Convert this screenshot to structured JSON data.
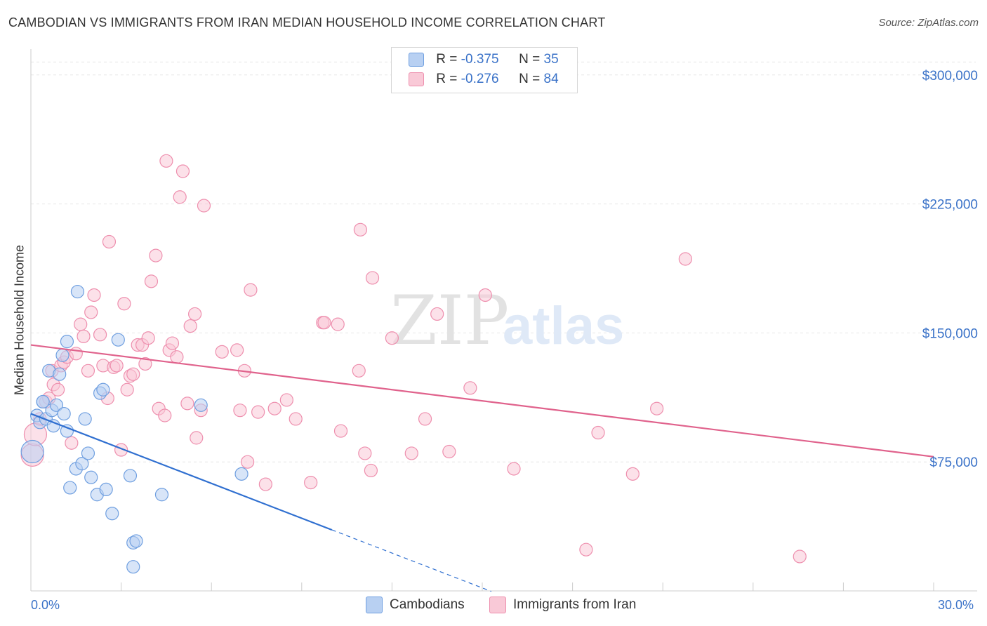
{
  "title": "CAMBODIAN VS IMMIGRANTS FROM IRAN MEDIAN HOUSEHOLD INCOME CORRELATION CHART",
  "source": "Source: ZipAtlas.com",
  "watermark": {
    "zip": "ZIP",
    "atlas": "atlas"
  },
  "legend": {
    "r_label": "R =",
    "n_label": "N =",
    "rows": [
      {
        "r": "-0.375",
        "n": "35",
        "color": "#b8d0f2",
        "border": "#6f9fe0"
      },
      {
        "r": "-0.276",
        "n": "84",
        "color": "#f9c9d7",
        "border": "#ee8fae"
      }
    ]
  },
  "chart_data": {
    "type": "scatter",
    "title": "CAMBODIAN VS IMMIGRANTS FROM IRAN MEDIAN HOUSEHOLD INCOME CORRELATION CHART",
    "xlabel": "",
    "ylabel": "Median Household Income",
    "xlim": [
      0,
      30
    ],
    "ylim": [
      0,
      315000
    ],
    "x_tick_labels": [
      "0.0%",
      "30.0%"
    ],
    "y_ticks": [
      75000,
      150000,
      225000,
      300000
    ],
    "y_tick_labels": [
      "$75,000",
      "$150,000",
      "$225,000",
      "$300,000"
    ],
    "grid": true,
    "legend_position": "bottom",
    "series": [
      {
        "name": "Cambodians",
        "color": "#6f9fe0",
        "fill": "#b8d0f2",
        "line_color": "#2f6fd0",
        "trend": {
          "x0": 0,
          "y0": 103000,
          "x1": 10,
          "y1": 35500,
          "dash_to_x": 15.3
        },
        "points": [
          [
            0.05,
            81000
          ],
          [
            0.2,
            102000
          ],
          [
            0.3,
            98000
          ],
          [
            0.4,
            110000
          ],
          [
            0.5,
            100000
          ],
          [
            0.6,
            128000
          ],
          [
            0.7,
            105000
          ],
          [
            0.75,
            96000
          ],
          [
            0.85,
            108000
          ],
          [
            0.95,
            126000
          ],
          [
            1.05,
            137000
          ],
          [
            1.1,
            103000
          ],
          [
            1.2,
            93000
          ],
          [
            1.3,
            60000
          ],
          [
            1.5,
            71000
          ],
          [
            1.7,
            74000
          ],
          [
            1.9,
            80000
          ],
          [
            2.0,
            66000
          ],
          [
            2.2,
            56000
          ],
          [
            2.3,
            115000
          ],
          [
            2.4,
            117000
          ],
          [
            2.5,
            59000
          ],
          [
            2.7,
            45000
          ],
          [
            2.9,
            146000
          ],
          [
            3.3,
            67000
          ],
          [
            3.4,
            28000
          ],
          [
            3.5,
            29000
          ],
          [
            1.2,
            145000
          ],
          [
            1.55,
            174000
          ],
          [
            3.4,
            14000
          ],
          [
            4.35,
            56000
          ],
          [
            5.65,
            108000
          ],
          [
            7.0,
            68000
          ],
          [
            1.8,
            100000
          ],
          [
            0.4,
            110000
          ]
        ]
      },
      {
        "name": "Immigrants from Iran",
        "color": "#ee8fae",
        "fill": "#f9c9d7",
        "line_color": "#e0628c",
        "trend": {
          "x0": 0,
          "y0": 143000,
          "x1": 30,
          "y1": 78000
        },
        "points": [
          [
            0.05,
            79000
          ],
          [
            0.15,
            91000
          ],
          [
            0.3,
            100000
          ],
          [
            0.5,
            110000
          ],
          [
            0.6,
            112000
          ],
          [
            0.7,
            128000
          ],
          [
            0.75,
            120000
          ],
          [
            0.9,
            117000
          ],
          [
            1.0,
            131000
          ],
          [
            1.1,
            133000
          ],
          [
            1.2,
            136000
          ],
          [
            1.35,
            86000
          ],
          [
            1.5,
            138000
          ],
          [
            1.65,
            155000
          ],
          [
            1.75,
            148000
          ],
          [
            1.9,
            128000
          ],
          [
            2.0,
            162000
          ],
          [
            2.1,
            172000
          ],
          [
            2.3,
            149000
          ],
          [
            2.4,
            131000
          ],
          [
            2.55,
            112000
          ],
          [
            2.6,
            203000
          ],
          [
            2.75,
            130000
          ],
          [
            2.85,
            131000
          ],
          [
            3.0,
            82000
          ],
          [
            3.1,
            167000
          ],
          [
            3.2,
            117000
          ],
          [
            3.3,
            125000
          ],
          [
            3.4,
            126000
          ],
          [
            3.55,
            143000
          ],
          [
            3.7,
            143000
          ],
          [
            3.8,
            132000
          ],
          [
            3.9,
            147000
          ],
          [
            4.0,
            180000
          ],
          [
            4.15,
            195000
          ],
          [
            4.25,
            106000
          ],
          [
            4.45,
            102000
          ],
          [
            4.5,
            250000
          ],
          [
            4.6,
            140000
          ],
          [
            4.7,
            144000
          ],
          [
            4.85,
            136000
          ],
          [
            4.95,
            229000
          ],
          [
            5.05,
            244000
          ],
          [
            5.2,
            109000
          ],
          [
            5.3,
            154000
          ],
          [
            5.45,
            161000
          ],
          [
            5.5,
            89000
          ],
          [
            5.65,
            105000
          ],
          [
            5.75,
            224000
          ],
          [
            6.35,
            139000
          ],
          [
            6.85,
            140000
          ],
          [
            6.95,
            105000
          ],
          [
            7.1,
            128000
          ],
          [
            7.2,
            75000
          ],
          [
            7.3,
            175000
          ],
          [
            7.55,
            104000
          ],
          [
            7.8,
            62000
          ],
          [
            8.1,
            106000
          ],
          [
            8.5,
            111000
          ],
          [
            9.3,
            63000
          ],
          [
            9.7,
            156000
          ],
          [
            10.2,
            155000
          ],
          [
            10.3,
            93000
          ],
          [
            10.9,
            128000
          ],
          [
            10.95,
            210000
          ],
          [
            11.1,
            80000
          ],
          [
            11.3,
            70000
          ],
          [
            11.35,
            182000
          ],
          [
            12.0,
            147000
          ],
          [
            12.65,
            80000
          ],
          [
            13.1,
            100000
          ],
          [
            13.5,
            161000
          ],
          [
            13.9,
            81000
          ],
          [
            14.6,
            118000
          ],
          [
            15.1,
            172000
          ],
          [
            16.05,
            71000
          ],
          [
            18.45,
            24000
          ],
          [
            18.85,
            92000
          ],
          [
            20.0,
            68000
          ],
          [
            20.8,
            106000
          ],
          [
            21.75,
            193000
          ],
          [
            25.55,
            20000
          ],
          [
            8.8,
            100000
          ],
          [
            9.75,
            156000
          ]
        ]
      }
    ]
  }
}
